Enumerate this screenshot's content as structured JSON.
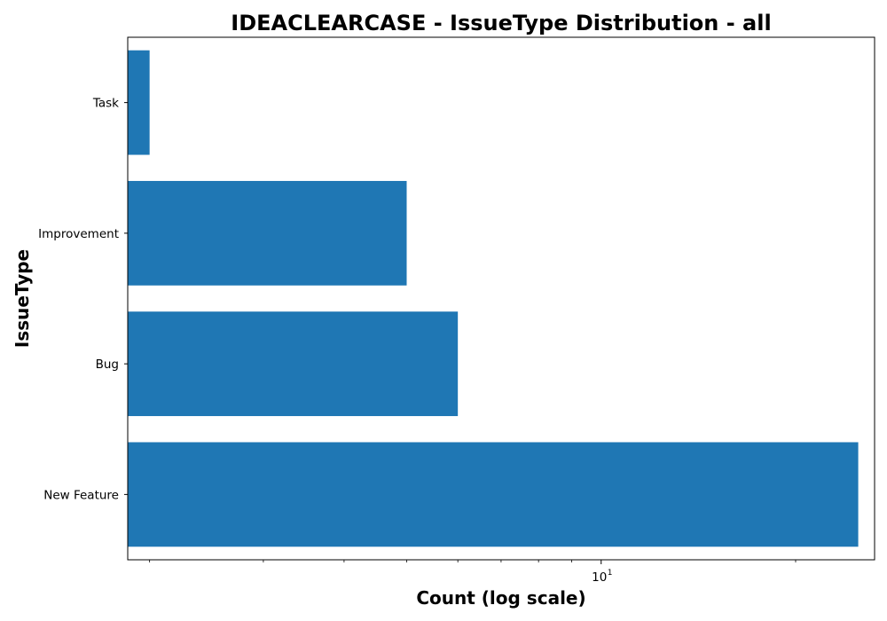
{
  "chart_data": {
    "type": "bar",
    "orientation": "horizontal",
    "title": "IDEACLEARCASE - IssueType Distribution - all",
    "xlabel": "Count (log scale)",
    "ylabel": "IssueType",
    "x_scale": "log",
    "xlim": [
      1.85,
      26.5
    ],
    "categories": [
      "New Feature",
      "Bug",
      "Improvement",
      "Task"
    ],
    "values": [
      25,
      6,
      5,
      2
    ],
    "bar_color": "#1f77b4",
    "x_tick_labels": [
      {
        "value": 10,
        "base": "10",
        "exponent": "1"
      }
    ],
    "x_minor_ticks": [
      2,
      3,
      4,
      5,
      6,
      7,
      8,
      9,
      20
    ],
    "grid": false,
    "legend": "none"
  }
}
